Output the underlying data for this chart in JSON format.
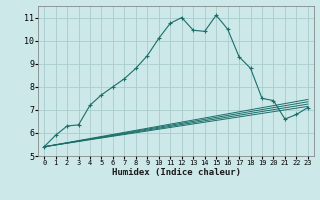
{
  "xlabel": "Humidex (Indice chaleur)",
  "background_color": "#cce8e8",
  "grid_color": "#aacccc",
  "line_color": "#1a6e6a",
  "xlim": [
    -0.5,
    23.5
  ],
  "ylim": [
    5.0,
    11.5
  ],
  "yticks": [
    5,
    6,
    7,
    8,
    9,
    10,
    11
  ],
  "xticks": [
    0,
    1,
    2,
    3,
    4,
    5,
    6,
    7,
    8,
    9,
    10,
    11,
    12,
    13,
    14,
    15,
    16,
    17,
    18,
    19,
    20,
    21,
    22,
    23
  ],
  "main_curve": [
    [
      0,
      5.4
    ],
    [
      1,
      5.9
    ],
    [
      2,
      6.3
    ],
    [
      3,
      6.35
    ],
    [
      4,
      7.2
    ],
    [
      5,
      7.65
    ],
    [
      6,
      8.0
    ],
    [
      7,
      8.35
    ],
    [
      8,
      8.8
    ],
    [
      9,
      9.35
    ],
    [
      10,
      10.1
    ],
    [
      11,
      10.75
    ],
    [
      12,
      11.0
    ],
    [
      13,
      10.45
    ],
    [
      14,
      10.4
    ],
    [
      15,
      11.1
    ],
    [
      16,
      10.5
    ],
    [
      17,
      9.3
    ],
    [
      18,
      8.8
    ],
    [
      19,
      7.5
    ],
    [
      20,
      7.4
    ],
    [
      21,
      6.6
    ],
    [
      22,
      6.8
    ],
    [
      23,
      7.1
    ]
  ],
  "flat_curve1": [
    [
      0,
      5.4
    ],
    [
      23,
      7.15
    ]
  ],
  "flat_curve2": [
    [
      0,
      5.4
    ],
    [
      23,
      7.25
    ]
  ],
  "flat_curve3": [
    [
      0,
      5.4
    ],
    [
      23,
      7.35
    ]
  ],
  "flat_curve4": [
    [
      0,
      5.4
    ],
    [
      23,
      7.45
    ]
  ]
}
